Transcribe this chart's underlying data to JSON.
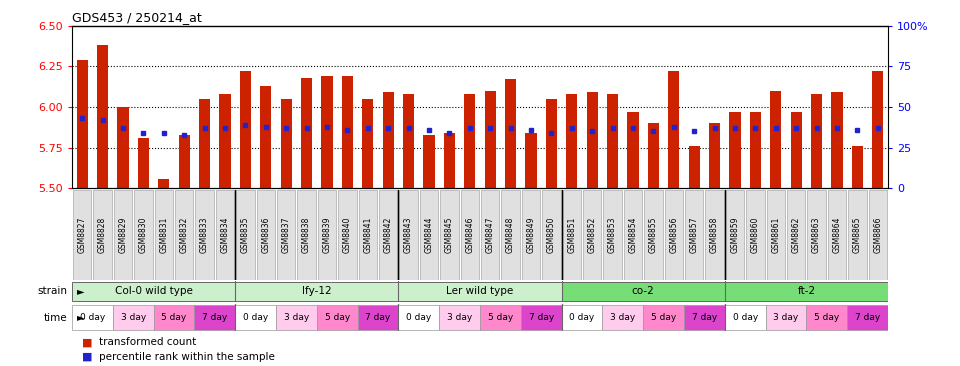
{
  "title": "GDS453 / 250214_at",
  "ylim": [
    5.5,
    6.5
  ],
  "yticks": [
    5.5,
    5.75,
    6.0,
    6.25,
    6.5
  ],
  "right_yticks": [
    0,
    25,
    50,
    75,
    100
  ],
  "right_ylabels": [
    "0",
    "25",
    "50",
    "75",
    "100%"
  ],
  "gsm_labels": [
    "GSM8827",
    "GSM8828",
    "GSM8829",
    "GSM8830",
    "GSM8831",
    "GSM8832",
    "GSM8833",
    "GSM8834",
    "GSM8835",
    "GSM8836",
    "GSM8837",
    "GSM8838",
    "GSM8839",
    "GSM8840",
    "GSM8841",
    "GSM8842",
    "GSM8843",
    "GSM8844",
    "GSM8845",
    "GSM8846",
    "GSM8847",
    "GSM8848",
    "GSM8849",
    "GSM8850",
    "GSM8851",
    "GSM8852",
    "GSM8853",
    "GSM8854",
    "GSM8855",
    "GSM8856",
    "GSM8857",
    "GSM8858",
    "GSM8859",
    "GSM8860",
    "GSM8861",
    "GSM8862",
    "GSM8863",
    "GSM8864",
    "GSM8865",
    "GSM8866"
  ],
  "bar_values": [
    6.29,
    6.38,
    6.0,
    5.81,
    5.56,
    5.83,
    6.05,
    6.08,
    6.22,
    6.13,
    6.05,
    6.18,
    6.19,
    6.19,
    6.05,
    6.09,
    6.08,
    5.83,
    5.84,
    6.08,
    6.1,
    6.17,
    5.84,
    6.05,
    6.08,
    6.09,
    6.08,
    5.97,
    5.9,
    6.22,
    5.76,
    5.9,
    5.97,
    5.97,
    6.1,
    5.97,
    6.08,
    6.09,
    5.76,
    6.22
  ],
  "blue_marker_values": [
    5.93,
    5.92,
    5.87,
    5.84,
    5.84,
    5.83,
    5.87,
    5.87,
    5.89,
    5.88,
    5.87,
    5.87,
    5.88,
    5.86,
    5.87,
    5.87,
    5.87,
    5.86,
    5.84,
    5.87,
    5.87,
    5.87,
    5.86,
    5.84,
    5.87,
    5.85,
    5.87,
    5.87,
    5.85,
    5.88,
    5.85,
    5.87,
    5.87,
    5.87,
    5.87,
    5.87,
    5.87,
    5.87,
    5.86,
    5.87
  ],
  "bar_bottom": 5.5,
  "bar_color": "#CC2200",
  "blue_color": "#2222CC",
  "strain_groups": [
    {
      "label": "Col-0 wild type",
      "start": 0,
      "end": 8,
      "color": "#ccf0cc"
    },
    {
      "label": "lfy-12",
      "start": 8,
      "end": 16,
      "color": "#ccf0cc"
    },
    {
      "label": "Ler wild type",
      "start": 16,
      "end": 24,
      "color": "#ccf0cc"
    },
    {
      "label": "co-2",
      "start": 24,
      "end": 32,
      "color": "#77dd77"
    },
    {
      "label": "ft-2",
      "start": 32,
      "end": 40,
      "color": "#77dd77"
    }
  ],
  "time_labels": [
    "0 day",
    "3 day",
    "5 day",
    "7 day"
  ],
  "time_colors": [
    "#ffffff",
    "#ffccee",
    "#ff88cc",
    "#dd44cc"
  ],
  "legend_items": [
    {
      "color": "#CC2200",
      "label": "transformed count"
    },
    {
      "color": "#2222CC",
      "label": "percentile rank within the sample"
    }
  ],
  "group_boundaries": [
    8,
    16,
    24,
    32
  ],
  "n_bars": 40,
  "group_size": 8,
  "n_time": 4
}
